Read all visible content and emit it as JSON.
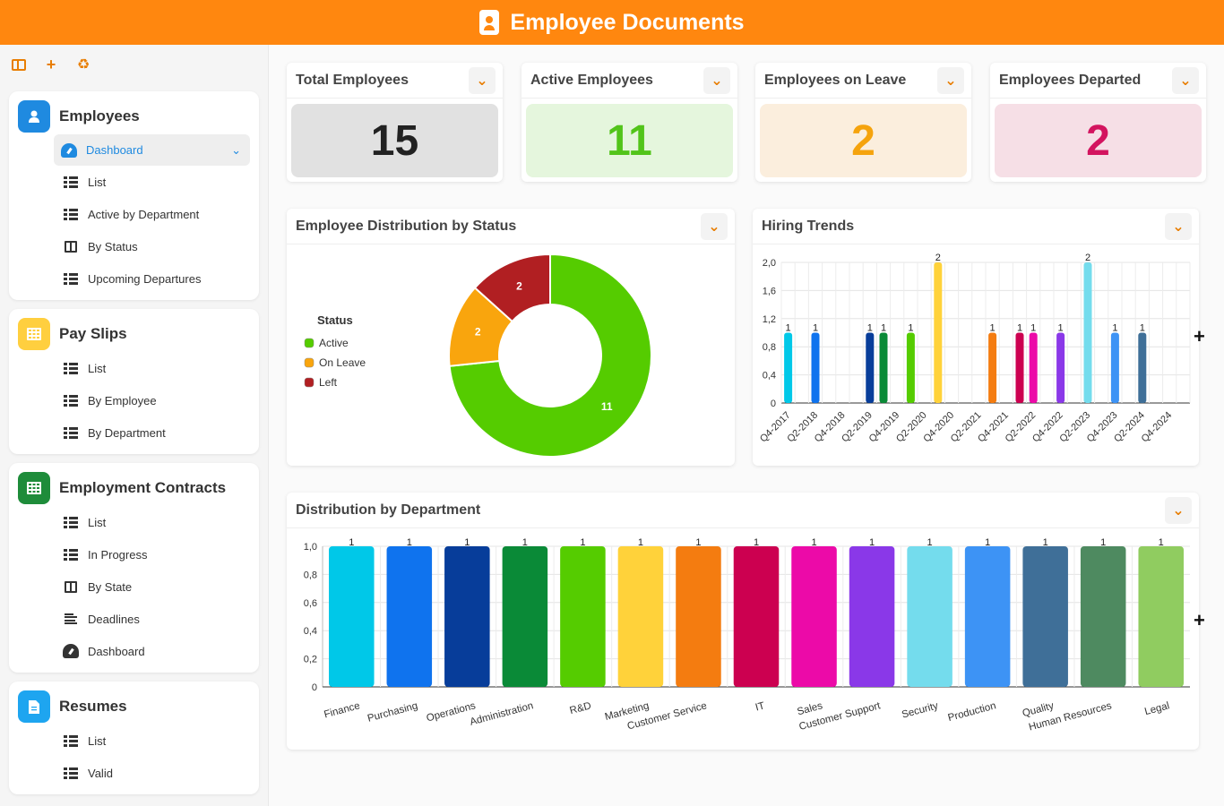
{
  "header": {
    "title": "Employee Documents",
    "icon": "id-badge-icon"
  },
  "toolbar": {
    "icons": [
      "panel-icon",
      "plus-icon",
      "recycle-icon"
    ]
  },
  "sidebar": {
    "sections": [
      {
        "title": "Employees",
        "icon": "user-icon",
        "color": "#1f8ae0",
        "items": [
          {
            "label": "Dashboard",
            "icon": "gauge-icon"
          },
          {
            "label": "List",
            "icon": "table-icon"
          },
          {
            "label": "Active by Department",
            "icon": "table-icon"
          },
          {
            "label": "By Status",
            "icon": "board-icon"
          },
          {
            "label": "Upcoming Departures",
            "icon": "table-icon"
          }
        ]
      },
      {
        "title": "Pay Slips",
        "icon": "grid-icon",
        "color": "#ffcf3f",
        "items": [
          {
            "label": "List",
            "icon": "table-icon"
          },
          {
            "label": "By Employee",
            "icon": "table-icon"
          },
          {
            "label": "By Department",
            "icon": "table-icon"
          }
        ]
      },
      {
        "title": "Employment Contracts",
        "icon": "grid-icon",
        "color": "#1e8c3a",
        "items": [
          {
            "label": "List",
            "icon": "table-icon"
          },
          {
            "label": "In Progress",
            "icon": "table-icon"
          },
          {
            "label": "By State",
            "icon": "board-icon"
          },
          {
            "label": "Deadlines",
            "icon": "lines-icon"
          },
          {
            "label": "Dashboard",
            "icon": "gauge-icon"
          }
        ]
      },
      {
        "title": "Resumes",
        "icon": "document-icon",
        "color": "#1ea5f0",
        "items": [
          {
            "label": "List",
            "icon": "table-icon"
          },
          {
            "label": "Valid",
            "icon": "table-icon"
          }
        ]
      }
    ]
  },
  "kpis": [
    {
      "title": "Total Employees",
      "value": "15",
      "bg": "#e1e1e1",
      "fg": "#222222"
    },
    {
      "title": "Active Employees",
      "value": "11",
      "bg": "#e5f6dd",
      "fg": "#52c41a"
    },
    {
      "title": "Employees on Leave",
      "value": "2",
      "bg": "#fbeedd",
      "fg": "#f5a30d"
    },
    {
      "title": "Employees Departed",
      "value": "2",
      "bg": "#f6dfe6",
      "fg": "#d3145f"
    }
  ],
  "status_card": {
    "title": "Employee Distribution by Status",
    "legend_title": "Status"
  },
  "hiring_card": {
    "title": "Hiring Trends"
  },
  "dept_card": {
    "title": "Distribution by Department"
  },
  "chart_data": [
    {
      "type": "pie",
      "legend_title": "Status",
      "legend_position": "left",
      "categories": [
        "Active",
        "On Leave",
        "Left"
      ],
      "values": [
        11,
        2,
        2
      ],
      "colors": [
        "#55cc00",
        "#f9a50d",
        "#b11f22"
      ]
    },
    {
      "type": "bar",
      "ylim": [
        0,
        2.0
      ],
      "yticks": [
        "0",
        "0,4",
        "0,8",
        "1,2",
        "1,6",
        "2,0"
      ],
      "xticks": [
        "Q4-2017",
        "Q2-2018",
        "Q4-2018",
        "Q2-2019",
        "Q4-2019",
        "Q2-2020",
        "Q4-2020",
        "Q2-2021",
        "Q4-2021",
        "Q2-2022",
        "Q4-2022",
        "Q2-2023",
        "Q4-2023",
        "Q2-2024",
        "Q4-2024"
      ],
      "grid": true,
      "bars": [
        {
          "value": 1,
          "color": "#00c8e8"
        },
        {
          "value": 1,
          "color": "#0f73ee"
        },
        {
          "value": 1,
          "color": "#073d9a"
        },
        {
          "value": 1,
          "color": "#0a8a37"
        },
        {
          "value": 1,
          "color": "#55cc00"
        },
        {
          "value": 2,
          "color": "#ffd23a"
        },
        {
          "value": 1,
          "color": "#f47c10"
        },
        {
          "value": 1,
          "color": "#cc0050"
        },
        {
          "value": 1,
          "color": "#ec0aa8"
        },
        {
          "value": 1,
          "color": "#8a38e8"
        },
        {
          "value": 2,
          "color": "#74dced"
        },
        {
          "value": 1,
          "color": "#3d93f5"
        },
        {
          "value": 1,
          "color": "#3f6f98"
        }
      ]
    },
    {
      "type": "bar",
      "ylim": [
        0,
        1.0
      ],
      "yticks": [
        "0",
        "0,2",
        "0,4",
        "0,6",
        "0,8",
        "1,0"
      ],
      "grid": true,
      "categories": [
        "Finance",
        "Purchasing",
        "Operations",
        "Administration",
        "R&D",
        "Marketing",
        "Customer Service",
        "IT",
        "Sales",
        "Customer Support",
        "Security",
        "Production",
        "Quality",
        "Human Resources",
        "Legal"
      ],
      "values": [
        1,
        1,
        1,
        1,
        1,
        1,
        1,
        1,
        1,
        1,
        1,
        1,
        1,
        1,
        1
      ],
      "colors": [
        "#00c8e8",
        "#0f73ee",
        "#073d9a",
        "#0a8a37",
        "#55cc00",
        "#ffd23a",
        "#f47c10",
        "#cc0050",
        "#ec0aa8",
        "#8a38e8",
        "#74dced",
        "#3d93f5",
        "#3f6f98",
        "#4e8a60",
        "#90cc60"
      ]
    }
  ]
}
